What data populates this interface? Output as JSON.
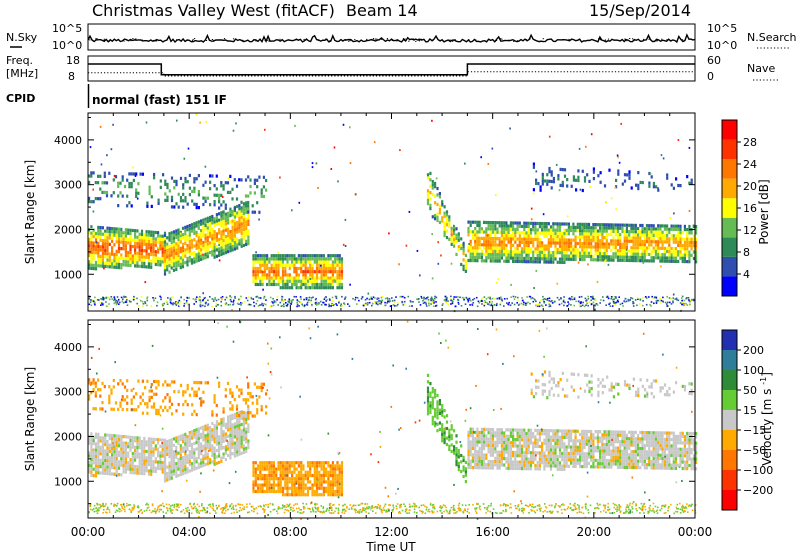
{
  "header": {
    "station": "Christmas Valley West (fitACF)",
    "beam": "Beam 14",
    "date": "15/Sep/2014"
  },
  "noise_panel": {
    "left_label": "N.Sky",
    "right_label": "N.Search",
    "ticks": [
      "10^5",
      "10^0"
    ]
  },
  "freq_panel": {
    "left_label_line1": "Freq.",
    "left_label_line2": "[MHz]",
    "left_ticks": [
      "18",
      "8"
    ],
    "right_label": "Nave",
    "right_ticks": [
      "60",
      "0"
    ]
  },
  "cpid": {
    "label": "CPID",
    "text": "normal (fast) 151 IF"
  },
  "colors": {
    "power_scale": [
      "#0000ff",
      "#2f4fb0",
      "#2e8b57",
      "#66bb55",
      "#ffff00",
      "#ffaa00",
      "#ff7700",
      "#ff3300",
      "#ff0000"
    ],
    "velocity_scale": [
      "#2030b0",
      "#2e7d9a",
      "#2e8b3a",
      "#66cc33",
      "#c8c8c8",
      "#ffaa00",
      "#ff7700",
      "#ff3300",
      "#ff0000"
    ],
    "ground_gray": "#c8c8c8"
  },
  "chart_data": [
    {
      "type": "line",
      "name": "noise",
      "ylabel": "N.Sky",
      "y_ticks": [
        "10^5",
        "10^0"
      ],
      "scale": "log"
    },
    {
      "type": "line",
      "name": "frequency",
      "ylabel": "Freq. [MHz]",
      "ylim": [
        8,
        18
      ],
      "y2label": "Nave",
      "y2lim": [
        0,
        60
      ],
      "x": [
        0,
        2.9,
        2.9,
        15,
        15,
        24
      ],
      "freq_mhz": [
        14.8,
        14.8,
        10.5,
        10.5,
        14.8,
        14.8
      ],
      "nave_x": [
        0,
        3,
        3,
        15,
        15,
        24
      ],
      "nave": [
        20,
        20,
        12,
        12,
        22,
        22
      ]
    },
    {
      "type": "heatmap",
      "name": "power",
      "xlabel": "",
      "ylabel": "Slant Range [km]",
      "xlim": [
        0,
        24
      ],
      "ylim": [
        180,
        4600
      ],
      "y_ticks": [
        1000,
        2000,
        3000,
        4000
      ],
      "colorbar_label": "Power [dB]",
      "colorbar_ticks": [
        4,
        8,
        12,
        16,
        20,
        24,
        28
      ],
      "colorbar_range": [
        0,
        32
      ],
      "features": [
        {
          "kind": "band",
          "x": [
            0,
            3
          ],
          "r_lo": [
            1150,
            1200
          ],
          "r_hi": [
            2100,
            1950
          ],
          "peak": 26
        },
        {
          "kind": "band",
          "x": [
            3,
            6.3
          ],
          "r_lo": [
            1000,
            1700
          ],
          "r_hi": [
            1900,
            2650
          ],
          "peak": 22
        },
        {
          "kind": "band",
          "x": [
            15,
            24
          ],
          "r_lo": [
            1300,
            1300
          ],
          "r_hi": [
            2200,
            2100
          ],
          "peak": 22
        },
        {
          "kind": "blob",
          "x": [
            6.5,
            10
          ],
          "r_lo": [
            750,
            700
          ],
          "r_hi": [
            1450,
            1450
          ],
          "peak": 24
        },
        {
          "kind": "spike",
          "x": [
            13.4,
            14.9
          ],
          "r_lo": [
            2500,
            1000
          ],
          "r_hi": [
            3400,
            1600
          ],
          "peak": 20
        },
        {
          "kind": "upper",
          "x": [
            0,
            7
          ],
          "r_lo": [
            2600,
            2400
          ],
          "r_hi": [
            3300,
            3200
          ],
          "peak": 12
        },
        {
          "kind": "upper",
          "x": [
            17.5,
            24
          ],
          "r_lo": [
            2900,
            2900
          ],
          "r_hi": [
            3500,
            3200
          ],
          "peak": 8
        }
      ]
    },
    {
      "type": "heatmap",
      "name": "velocity",
      "xlabel": "Time UT",
      "ylabel": "Slant Range [km]",
      "xlim": [
        0,
        24
      ],
      "ylim": [
        180,
        4600
      ],
      "x_ticks": [
        "00:00",
        "04:00",
        "08:00",
        "12:00",
        "16:00",
        "20:00",
        "00:00"
      ],
      "y_ticks": [
        1000,
        2000,
        3000,
        4000
      ],
      "colorbar_label": "Velocity [m s^-1]",
      "colorbar_ticks": [
        200,
        100,
        50,
        15,
        -15,
        -50,
        -100,
        -200
      ],
      "features": [
        {
          "kind": "band",
          "x": [
            0,
            3
          ],
          "r_lo": [
            1150,
            1200
          ],
          "r_hi": [
            2100,
            1950
          ],
          "v": 0
        },
        {
          "kind": "band",
          "x": [
            3,
            6.3
          ],
          "r_lo": [
            1000,
            1700
          ],
          "r_hi": [
            1900,
            2650
          ],
          "v": 0
        },
        {
          "kind": "band",
          "x": [
            15,
            24
          ],
          "r_lo": [
            1300,
            1300
          ],
          "r_hi": [
            2200,
            2100
          ],
          "v": 0
        },
        {
          "kind": "blob",
          "x": [
            6.5,
            10
          ],
          "r_lo": [
            750,
            700
          ],
          "r_hi": [
            1450,
            1450
          ],
          "v": -40
        },
        {
          "kind": "spike",
          "x": [
            13.4,
            14.9
          ],
          "r_lo": [
            2500,
            1000
          ],
          "r_hi": [
            3400,
            1600
          ],
          "v": 40
        },
        {
          "kind": "upper",
          "x": [
            0,
            7
          ],
          "r_lo": [
            2600,
            2400
          ],
          "r_hi": [
            3300,
            3200
          ],
          "v": -40
        },
        {
          "kind": "upper",
          "x": [
            17.5,
            24
          ],
          "r_lo": [
            2900,
            2900
          ],
          "r_hi": [
            3500,
            3200
          ],
          "v": 0
        }
      ]
    }
  ]
}
